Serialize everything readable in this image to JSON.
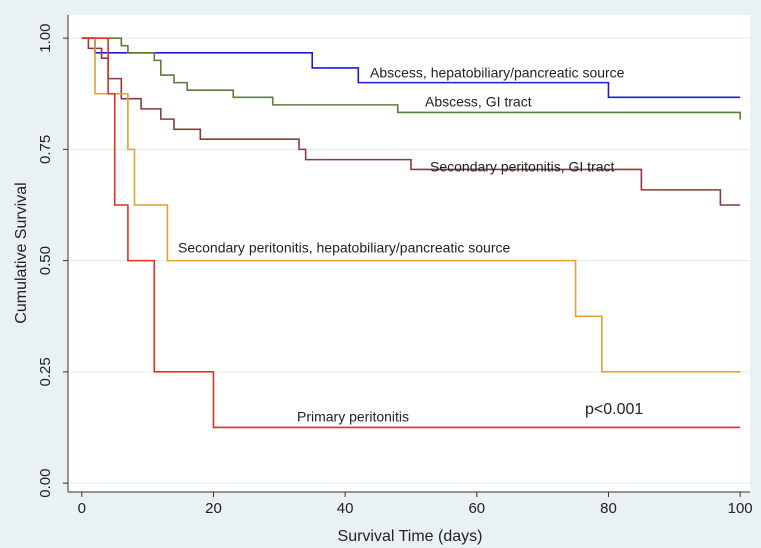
{
  "chart_data": {
    "type": "step",
    "xlabel": "Survival Time (days)",
    "ylabel": "Cumulative Survival",
    "xlim": [
      -2.1,
      101.5
    ],
    "ylim": [
      -0.02,
      1.052
    ],
    "xticks": [
      0,
      20,
      40,
      60,
      80,
      100
    ],
    "yticks": [
      {
        "value": 0,
        "label": "0.00"
      },
      {
        "value": 0.25,
        "label": "0.25"
      },
      {
        "value": 0.5,
        "label": "0.50"
      },
      {
        "value": 0.75,
        "label": "0.75"
      },
      {
        "value": 1,
        "label": "1.00"
      }
    ],
    "grid": true,
    "annotations": [
      "p<0.001"
    ],
    "series": [
      {
        "name": "Abscess, hepatobiliary/pancreatic source",
        "color": "#1c1cd6",
        "x": [
          0,
          2,
          35,
          42,
          80,
          100
        ],
        "values": [
          1,
          0.967,
          0.933,
          0.9,
          0.867,
          0.867
        ]
      },
      {
        "name": "Abscess, GI tract",
        "color": "#5b7d3c",
        "x": [
          0,
          6,
          7,
          11,
          12,
          14,
          16,
          23,
          29,
          48,
          100
        ],
        "values": [
          1,
          0.983,
          0.967,
          0.95,
          0.917,
          0.9,
          0.883,
          0.867,
          0.85,
          0.833,
          0.817
        ]
      },
      {
        "name": "Secondary peritonitis, GI tract",
        "color": "#8c3b3b",
        "x": [
          0,
          1,
          3,
          4,
          6,
          9,
          12,
          14,
          18,
          33,
          34,
          50,
          85,
          97,
          100
        ],
        "values": [
          1,
          0.977,
          0.955,
          0.909,
          0.864,
          0.841,
          0.818,
          0.795,
          0.773,
          0.75,
          0.727,
          0.705,
          0.659,
          0.625,
          0.625
        ]
      },
      {
        "name": "Secondary peritonitis, hepatobiliary/pancreatic source",
        "color": "#e3a12f",
        "x": [
          0,
          2,
          7,
          8,
          13,
          75,
          79,
          100
        ],
        "values": [
          1,
          0.875,
          0.75,
          0.625,
          0.5,
          0.375,
          0.25,
          0.25
        ]
      },
      {
        "name": "Primary peritonitis",
        "color": "#e3301f",
        "x": [
          0,
          4,
          5,
          7,
          11,
          20,
          100
        ],
        "values": [
          1,
          0.875,
          0.625,
          0.5,
          0.25,
          0.125,
          0.125
        ]
      }
    ]
  }
}
